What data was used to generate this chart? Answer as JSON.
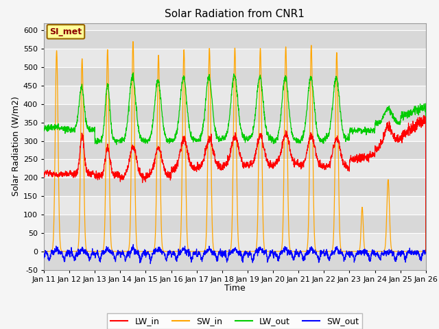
{
  "title": "Solar Radiation from CNR1",
  "xlabel": "Time",
  "ylabel": "Solar Radiation (W/m2)",
  "ylim": [
    -50,
    620
  ],
  "yticks": [
    -50,
    0,
    50,
    100,
    150,
    200,
    250,
    300,
    350,
    400,
    450,
    500,
    550,
    600
  ],
  "x_tick_labels": [
    "Jan 11",
    "Jan 12",
    "Jan 13",
    "Jan 14",
    "Jan 15",
    "Jan 16",
    "Jan 17",
    "Jan 18",
    "Jan 19",
    "Jan 20",
    "Jan 21",
    "Jan 22",
    "Jan 23",
    "Jan 24",
    "Jan 25",
    "Jan 26"
  ],
  "line_colors": {
    "LW_in": "#ff0000",
    "SW_in": "#ffa500",
    "LW_out": "#00cc00",
    "SW_out": "#0000ff"
  },
  "annotation_text": "SI_met",
  "annotation_bg": "#ffff99",
  "annotation_border": "#996600",
  "bg_color": "#e8e8e8",
  "band_color": "#d0d0d0",
  "legend_entries": [
    "LW_in",
    "SW_in",
    "LW_out",
    "SW_out"
  ],
  "sw_peaks": [
    0,
    545,
    523,
    548,
    570,
    533,
    548,
    552,
    553,
    552,
    556,
    560,
    540,
    0,
    0,
    0
  ],
  "sw_partial_days": {
    "13": 120,
    "14": 195
  },
  "lw_in_base": [
    210,
    210,
    205,
    200,
    205,
    223,
    228,
    232,
    232,
    238,
    232,
    228,
    248,
    275,
    310,
    355
  ],
  "lw_out_base": [
    335,
    330,
    300,
    300,
    300,
    302,
    302,
    308,
    305,
    300,
    300,
    305,
    328,
    348,
    365,
    385
  ]
}
